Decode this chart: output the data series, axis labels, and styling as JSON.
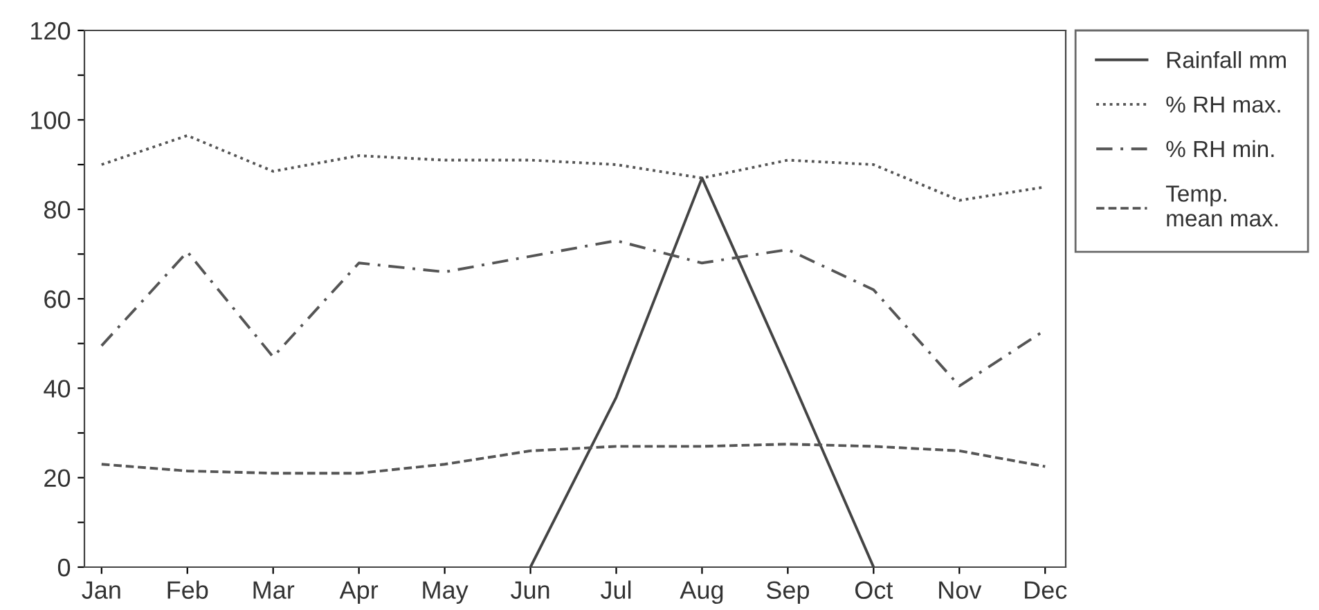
{
  "chart_data": {
    "type": "line",
    "categories": [
      "Jan",
      "Feb",
      "Mar",
      "Apr",
      "May",
      "Jun",
      "Jul",
      "Aug",
      "Sep",
      "Oct",
      "Nov",
      "Dec"
    ],
    "series": [
      {
        "name": "Rainfall mm",
        "color": "#444444",
        "line_style": "solid",
        "values": [
          null,
          null,
          null,
          null,
          null,
          0,
          38,
          87,
          44,
          0,
          null,
          null
        ]
      },
      {
        "name": "% RH max.",
        "color": "#555555",
        "line_style": "dotted",
        "values": [
          90,
          96.5,
          88.5,
          92,
          91,
          91,
          90,
          87,
          91,
          90,
          82,
          85
        ]
      },
      {
        "name": "% RH min.",
        "color": "#555555",
        "line_style": "dashdot",
        "values": [
          49.5,
          70.5,
          47,
          68,
          66,
          69.5,
          73,
          68,
          71,
          62,
          40.5,
          53
        ]
      },
      {
        "name": "Temp.\nmean max.",
        "color": "#555555",
        "line_style": "dashed",
        "values": [
          23,
          21.5,
          21,
          21,
          23,
          26,
          27,
          27,
          27.5,
          27,
          26,
          22.5
        ]
      }
    ],
    "ylim": [
      0,
      120
    ],
    "yticks": [
      0,
      {
        "value": 10,
        "label": null
      },
      20,
      {
        "value": 30,
        "label": null
      },
      40,
      {
        "value": 50,
        "label": null
      },
      60,
      {
        "value": 70,
        "label": null
      },
      80,
      {
        "value": 90,
        "label": null
      },
      100,
      {
        "value": 110,
        "label": null
      },
      120
    ],
    "grid": false,
    "legend": "right",
    "marker": "none"
  }
}
